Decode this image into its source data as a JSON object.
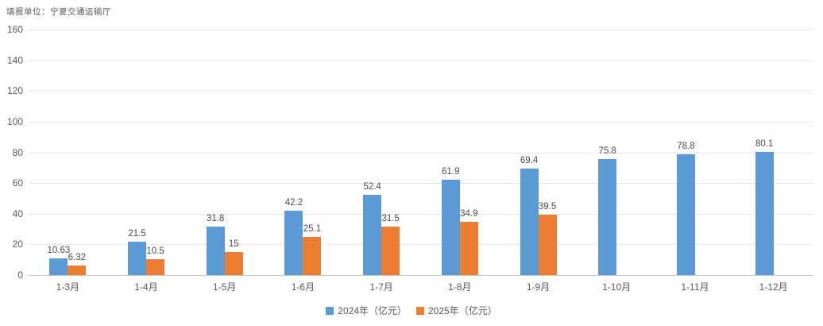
{
  "header": {
    "report_unit": "填报单位：宁夏交通运输厅"
  },
  "colors": {
    "series_2024": "#5B9BD5",
    "series_2025": "#ED7D31",
    "gridline": "#e4e4e4",
    "axis_line": "#c9c9c9",
    "text": "#595959"
  },
  "chart_data": {
    "type": "bar",
    "title": "",
    "xlabel": "",
    "ylabel": "",
    "categories": [
      "1-3月",
      "1-4月",
      "1-5月",
      "1-6月",
      "1-7月",
      "1-8月",
      "1-9月",
      "1-10月",
      "1-11月",
      "1-12月"
    ],
    "series": [
      {
        "name": "2024年（亿元）",
        "color": "#5B9BD5",
        "values": [
          10.63,
          21.5,
          31.8,
          42.2,
          52.4,
          61.9,
          69.4,
          75.8,
          78.8,
          80.1
        ]
      },
      {
        "name": "2025年（亿元）",
        "color": "#ED7D31",
        "values": [
          6.32,
          10.5,
          15,
          25.1,
          31.5,
          34.9,
          39.5,
          null,
          null,
          null
        ]
      }
    ],
    "ylim": [
      0,
      160
    ],
    "ytick_step": 20,
    "yticks": [
      0,
      20,
      40,
      60,
      80,
      100,
      120,
      140,
      160
    ],
    "grid": true,
    "data_labels": true,
    "legend_position": "bottom"
  }
}
